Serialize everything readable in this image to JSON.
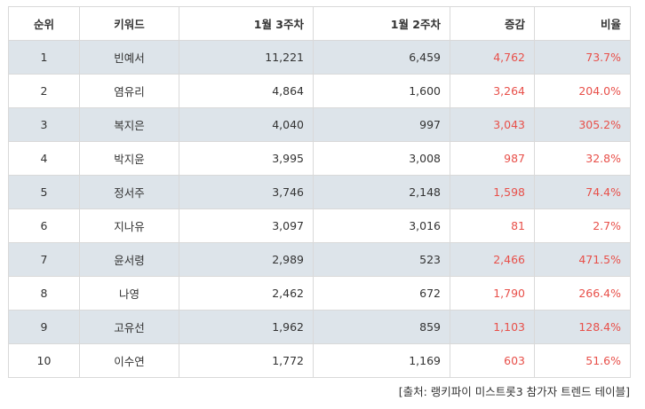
{
  "table": {
    "headers": {
      "rank": "순위",
      "keyword": "키워드",
      "week3": "1월 3주차",
      "week2": "1월 2주차",
      "change": "증감",
      "ratio": "비율"
    },
    "rows": [
      {
        "rank": "1",
        "keyword": "빈예서",
        "week3": "11,221",
        "week2": "6,459",
        "change": "4,762",
        "ratio": "73.7%"
      },
      {
        "rank": "2",
        "keyword": "염유리",
        "week3": "4,864",
        "week2": "1,600",
        "change": "3,264",
        "ratio": "204.0%"
      },
      {
        "rank": "3",
        "keyword": "복지은",
        "week3": "4,040",
        "week2": "997",
        "change": "3,043",
        "ratio": "305.2%"
      },
      {
        "rank": "4",
        "keyword": "박지윤",
        "week3": "3,995",
        "week2": "3,008",
        "change": "987",
        "ratio": "32.8%"
      },
      {
        "rank": "5",
        "keyword": "정서주",
        "week3": "3,746",
        "week2": "2,148",
        "change": "1,598",
        "ratio": "74.4%"
      },
      {
        "rank": "6",
        "keyword": "지나유",
        "week3": "3,097",
        "week2": "3,016",
        "change": "81",
        "ratio": "2.7%"
      },
      {
        "rank": "7",
        "keyword": "윤서령",
        "week3": "2,989",
        "week2": "523",
        "change": "2,466",
        "ratio": "471.5%"
      },
      {
        "rank": "8",
        "keyword": "나영",
        "week3": "2,462",
        "week2": "672",
        "change": "1,790",
        "ratio": "266.4%"
      },
      {
        "rank": "9",
        "keyword": "고유선",
        "week3": "1,962",
        "week2": "859",
        "change": "1,103",
        "ratio": "128.4%"
      },
      {
        "rank": "10",
        "keyword": "이수연",
        "week3": "1,772",
        "week2": "1,169",
        "change": "603",
        "ratio": "51.6%"
      }
    ]
  },
  "source": "[출처: 랭키파이 미스트롯3 참가자 트렌드 테이블]",
  "colors": {
    "stripe": "#dde4ea",
    "accent_red": "#e8504a",
    "border": "#d9d9d9"
  }
}
